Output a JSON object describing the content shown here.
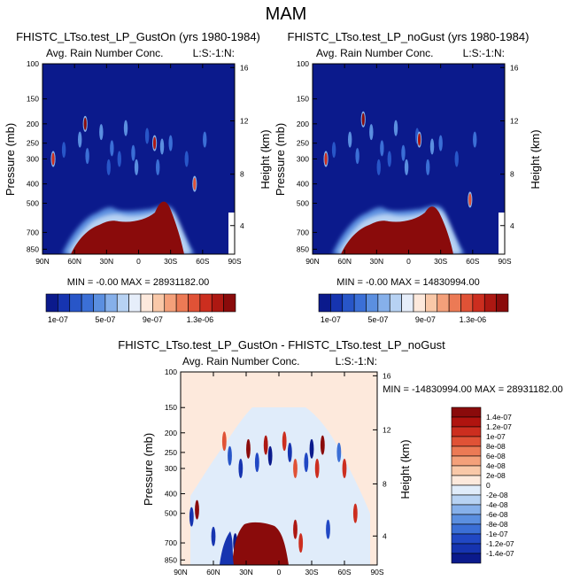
{
  "figure_title": "MAM",
  "chart_data": [
    {
      "type": "heatmap",
      "title": "FHISTC_LTso.test_LP_GustOn (yrs 1980-1984)",
      "left_string": "Avg. Rain Number Conc.",
      "right_string": "L:S:-1:N:",
      "ylabel": "Pressure (mb)",
      "ylabel_right": "Height (km)",
      "x_ticks": [
        "90N",
        "60N",
        "30N",
        "0",
        "30S",
        "60S",
        "90S"
      ],
      "y_ticks": [
        "100",
        "150",
        "200",
        "250",
        "300",
        "400",
        "500",
        "700",
        "850"
      ],
      "height_ticks": [
        "16",
        "12",
        "8",
        "4"
      ],
      "stats": "MIN =  -0.00   MAX = 28931182.00",
      "colorbar_ticks": [
        "1e-07",
        "5e-07",
        "9e-07",
        "1.3e-06"
      ],
      "colorbar_colors": [
        "#0b1a8c",
        "#1634b0",
        "#2856c8",
        "#3b6fd6",
        "#5b8fe0",
        "#86b0ea",
        "#b7d2f3",
        "#e6eefa",
        "#fde9dc",
        "#f9c8a8",
        "#f4a07a",
        "#ec7a55",
        "#e05236",
        "#cc2e1f",
        "#ad1812",
        "#8a0b0b"
      ],
      "blobs": [
        [
          40,
          60,
          55,
          200,
          20,
          80,
          "#8a0b0b"
        ],
        [
          -20,
          -10,
          15,
          250,
          -20,
          40,
          "#ad1812"
        ],
        [
          -55,
          -50,
          60,
          400,
          -40,
          50,
          "#e05236"
        ],
        [
          78,
          82,
          65,
          300,
          5,
          30,
          "#cc2e1f"
        ]
      ]
    },
    {
      "type": "heatmap",
      "title": "FHISTC_LTso.test_LP_noGust (yrs 1980-1984)",
      "left_string": "Avg. Rain Number Conc.",
      "right_string": "L:S:-1:N:",
      "ylabel": "Pressure (mb)",
      "ylabel_right": "Height (km)",
      "x_ticks": [
        "90N",
        "60N",
        "30N",
        "0",
        "30S",
        "60S",
        "90S"
      ],
      "y_ticks": [
        "100",
        "150",
        "200",
        "250",
        "300",
        "400",
        "500",
        "700",
        "850"
      ],
      "height_ticks": [
        "16",
        "12",
        "8",
        "4"
      ],
      "stats": "MIN =  -0.00   MAX = 14830994.00",
      "colorbar_ticks": [
        "1e-07",
        "5e-07",
        "9e-07",
        "1.3e-06"
      ],
      "colorbar_colors": [
        "#0b1a8c",
        "#1634b0",
        "#2856c8",
        "#3b6fd6",
        "#5b8fe0",
        "#86b0ea",
        "#b7d2f3",
        "#e6eefa",
        "#fde9dc",
        "#f9c8a8",
        "#f4a07a",
        "#ec7a55",
        "#e05236",
        "#cc2e1f",
        "#ad1812",
        "#8a0b0b"
      ],
      "blobs": [
        [
          35,
          50,
          50,
          190,
          10,
          60,
          "#8a0b0b"
        ],
        [
          -15,
          -5,
          10,
          240,
          -10,
          30,
          "#ad1812"
        ],
        [
          -60,
          -55,
          45,
          480,
          -30,
          40,
          "#e05236"
        ],
        [
          75,
          80,
          55,
          300,
          5,
          30,
          "#cc2e1f"
        ]
      ]
    },
    {
      "type": "heatmap",
      "title": "FHISTC_LTso.test_LP_GustOn - FHISTC_LTso.test_LP_noGust",
      "left_string": "Avg. Rain Number Conc.",
      "right_string": "L:S:-1:N:",
      "ylabel": "Pressure (mb)",
      "ylabel_right": "Height (km)",
      "x_ticks": [
        "90N",
        "60N",
        "30N",
        "0",
        "30S",
        "60S",
        "90S"
      ],
      "y_ticks": [
        "100",
        "150",
        "200",
        "250",
        "300",
        "400",
        "500",
        "700",
        "850"
      ],
      "height_ticks": [
        "16",
        "12",
        "8",
        "4"
      ],
      "stats": "MIN = -14830994.00  MAX = 28931182.00",
      "colorbar_ticks": [
        "1.4e-07",
        "1.2e-07",
        "1e-07",
        "8e-08",
        "6e-08",
        "4e-08",
        "2e-08",
        "0",
        "-2e-08",
        "-4e-08",
        "-6e-08",
        "-8e-08",
        "-1e-07",
        "-1.2e-07",
        "-1.4e-07"
      ],
      "colorbar_colors": [
        "#8a0b0b",
        "#b0140f",
        "#cc2e1f",
        "#e05236",
        "#ec7a55",
        "#f4a07a",
        "#f9c8a8",
        "#fde9dc",
        "#e0ecfa",
        "#b7d2f3",
        "#86b0ea",
        "#5b8fe0",
        "#3b6fd6",
        "#2148c4",
        "#1634b0",
        "#0b1a8c"
      ]
    }
  ]
}
